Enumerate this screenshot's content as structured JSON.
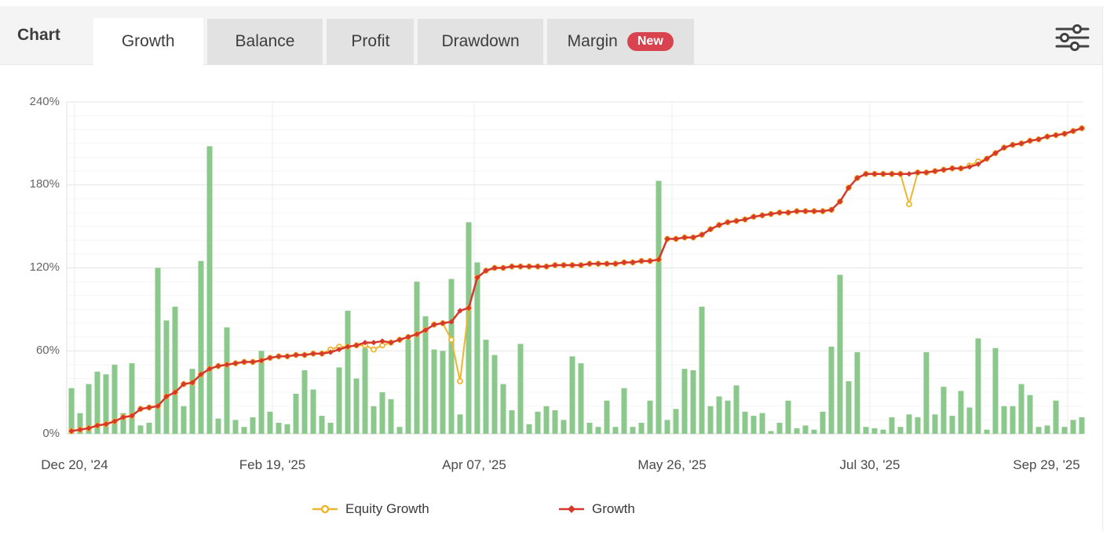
{
  "tabs": [
    {
      "label": "Chart",
      "active": false,
      "style": "plain"
    },
    {
      "label": "Growth",
      "active": true
    },
    {
      "label": "Balance",
      "active": false
    },
    {
      "label": "Profit",
      "active": false
    },
    {
      "label": "Drawdown",
      "active": false
    },
    {
      "label": "Margin",
      "active": false,
      "badge": "New"
    }
  ],
  "controls": {
    "icon": "sliders-icon"
  },
  "colors": {
    "bars": "#8bc88b",
    "equity": "#f0b52e",
    "growth": "#d6392c",
    "grid_minor": "#f5f5f5",
    "grid_major": "#e5e5e5",
    "grid_vertical": "#ececec",
    "axis": "#d8d8d8",
    "badge": "#d94350",
    "tab_bg": "#e2e2e2",
    "bar_row_bg": "#f4f4f4"
  },
  "chart_data": {
    "type": "mixed",
    "title": "",
    "ylim": [
      0,
      240
    ],
    "y_ticks": [
      "0%",
      "60%",
      "120%",
      "180%",
      "240%"
    ],
    "y_tick_values": [
      0,
      60,
      120,
      180,
      240
    ],
    "grid": {
      "h_minor_step": 10,
      "h_major_step": 60,
      "vertical_at_ticks": true
    },
    "x_tick_labels": [
      "Dec 20, '24",
      "Feb 19, '25",
      "Apr 07, '25",
      "May 26, '25",
      "Jul 30, '25",
      "Sep 29, '25"
    ],
    "legend_position": "bottom",
    "legend": [
      {
        "label": "Equity Growth",
        "color": "#f0b52e",
        "marker": "circle"
      },
      {
        "label": "Growth",
        "color": "#d6392c",
        "marker": "diamond"
      }
    ],
    "series": [
      {
        "name": "",
        "type": "bar",
        "color": "#8bc88b",
        "unit": "%",
        "values": [
          33,
          15,
          36,
          45,
          43,
          50,
          15,
          51,
          6,
          8,
          120,
          82,
          92,
          20,
          47,
          125,
          208,
          11,
          77,
          10,
          5,
          12,
          60,
          16,
          8,
          7,
          29,
          46,
          32,
          13,
          8,
          48,
          89,
          40,
          62,
          20,
          30,
          25,
          5,
          68,
          110,
          85,
          61,
          60,
          112,
          14,
          153,
          124,
          68,
          57,
          36,
          17,
          65,
          7,
          16,
          20,
          17,
          10,
          56,
          51,
          8,
          5,
          24,
          5,
          33,
          5,
          8,
          24,
          183,
          10,
          18,
          47,
          46,
          92,
          20,
          27,
          24,
          35,
          16,
          13,
          15,
          2,
          8,
          24,
          4,
          6,
          3,
          16,
          63,
          115,
          38,
          59,
          5,
          4,
          3,
          12,
          5,
          14,
          12,
          59,
          14,
          34,
          13,
          31,
          19,
          69,
          3,
          62,
          20,
          20,
          36,
          28,
          5,
          6,
          24,
          5,
          10,
          12
        ]
      },
      {
        "name": "Equity Growth",
        "type": "line",
        "color": "#f0b52e",
        "marker": "circle",
        "unit": "%",
        "values": [
          2,
          3,
          4,
          6,
          7,
          9,
          12,
          13,
          18,
          19,
          20,
          27,
          30,
          36,
          37,
          43,
          47,
          49,
          50,
          51,
          52,
          52,
          53,
          55,
          56,
          56,
          57,
          57,
          58,
          58,
          61,
          63,
          63,
          64,
          64,
          61,
          64,
          66,
          68,
          70,
          72,
          75,
          79,
          80,
          68,
          38,
          91,
          113,
          118,
          120,
          120,
          121,
          121,
          121,
          121,
          121,
          122,
          122,
          122,
          122,
          123,
          123,
          123,
          123,
          124,
          124,
          125,
          125,
          126,
          141,
          141,
          142,
          142,
          144,
          148,
          151,
          153,
          154,
          155,
          157,
          158,
          159,
          160,
          160,
          161,
          161,
          161,
          161,
          162,
          168,
          178,
          185,
          188,
          188,
          188,
          188,
          188,
          166,
          189,
          189,
          190,
          191,
          192,
          192,
          194,
          197,
          199,
          203,
          207,
          209,
          210,
          212,
          213,
          215,
          216,
          217,
          219,
          221
        ]
      },
      {
        "name": "Growth",
        "type": "line",
        "color": "#d6392c",
        "marker": "diamond",
        "unit": "%",
        "values": [
          2,
          3,
          4,
          6,
          7,
          9,
          12,
          13,
          18,
          19,
          20,
          27,
          30,
          36,
          37,
          43,
          47,
          49,
          50,
          51,
          52,
          52,
          53,
          55,
          56,
          56,
          57,
          57,
          58,
          58,
          59,
          61,
          63,
          64,
          66,
          66,
          67,
          66,
          68,
          70,
          72,
          75,
          79,
          80,
          81,
          89,
          91,
          113,
          118,
          120,
          120,
          121,
          121,
          121,
          121,
          121,
          122,
          122,
          122,
          122,
          123,
          123,
          123,
          123,
          124,
          124,
          125,
          125,
          126,
          141,
          141,
          142,
          142,
          144,
          148,
          151,
          153,
          154,
          155,
          157,
          158,
          159,
          160,
          160,
          161,
          161,
          161,
          161,
          162,
          168,
          178,
          185,
          188,
          188,
          188,
          188,
          188,
          188,
          189,
          189,
          190,
          191,
          192,
          192,
          193,
          195,
          199,
          203,
          207,
          209,
          210,
          212,
          213,
          215,
          216,
          217,
          219,
          221
        ]
      }
    ]
  }
}
